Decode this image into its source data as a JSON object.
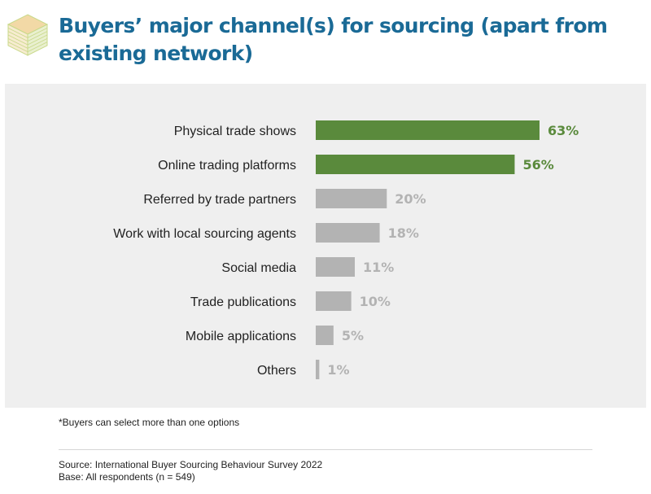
{
  "title": "Buyers’ major channel(s) for sourcing (apart from existing network)",
  "footnote": "*Buyers can select more than one options",
  "source": "Source: International Buyer Sourcing Behaviour Survey 2022",
  "base": "Base: All respondents (n = 549)",
  "colors": {
    "title": "#1a6a96",
    "highlight": "#5a8a3c",
    "muted": "#b3b3b3",
    "panel": "#efefef",
    "logo_stroke": "#c9d98a",
    "logo_fill": "#f2d9a6"
  },
  "icons": {
    "logo": "isometric-cube-logo"
  },
  "chart_data": {
    "type": "bar",
    "orientation": "horizontal",
    "title": "Buyers’ major channel(s) for sourcing (apart from existing network)",
    "xlabel": "",
    "ylabel": "",
    "xlim": [
      0,
      63
    ],
    "grid": false,
    "legend": "none",
    "value_suffix": "%",
    "highlight_count": 2,
    "categories": [
      "Physical trade shows",
      "Online trading platforms",
      "Referred by trade partners",
      "Work with local sourcing agents",
      "Social media",
      "Trade publications",
      "Mobile applications",
      "Others"
    ],
    "values": [
      63,
      56,
      20,
      18,
      11,
      10,
      5,
      1
    ],
    "labels": [
      "63%",
      "56%",
      "20%",
      "18%",
      "11%",
      "10%",
      "5%",
      "1%"
    ]
  }
}
